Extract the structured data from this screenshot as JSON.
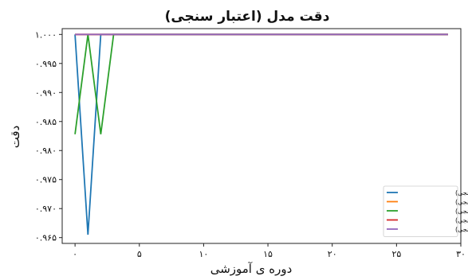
{
  "chart_data": {
    "type": "line",
    "title": "دقت مدل (اعتبار سنجی)",
    "xlabel": "دوره ی آموزشی",
    "ylabel": "دقت",
    "xlim": [
      -1,
      30
    ],
    "ylim": [
      0.964,
      1.001
    ],
    "x_ticks": [
      0,
      5,
      10,
      15,
      20,
      25,
      30
    ],
    "x_tick_labels": [
      "۰",
      "۵",
      "۱۰",
      "۱۵",
      "۲۰",
      "۲۵",
      "۳۰"
    ],
    "y_ticks": [
      0.965,
      0.97,
      0.975,
      0.98,
      0.985,
      0.99,
      0.995,
      1.0
    ],
    "y_tick_labels": [
      "۰.۹۶۵",
      "۰.۹۷۰",
      "۰.۹۷۵",
      "۰.۹۸۰",
      "۰.۹۸۵",
      "۰.۹۹۰",
      "۰.۹۹۵",
      "۱.۰۰۰"
    ],
    "grid": false,
    "legend_position": "bottom-right",
    "series": [
      {
        "name": "دقت_۱ (اعتبار سنجی)",
        "color": "#1f77b4",
        "x": [
          0,
          1,
          2,
          3,
          4,
          5,
          6,
          7,
          8,
          9,
          10,
          11,
          12,
          13,
          14,
          15,
          16,
          17,
          18,
          19,
          20,
          21,
          22,
          23,
          24,
          25,
          26,
          27,
          28,
          29
        ],
        "y": [
          1.0,
          0.9655,
          1.0,
          1.0,
          1.0,
          1.0,
          1.0,
          1.0,
          1.0,
          1.0,
          1.0,
          1.0,
          1.0,
          1.0,
          1.0,
          1.0,
          1.0,
          1.0,
          1.0,
          1.0,
          1.0,
          1.0,
          1.0,
          1.0,
          1.0,
          1.0,
          1.0,
          1.0,
          1.0,
          1.0
        ]
      },
      {
        "name": "دقت_۲ (اعتبار سنجی)",
        "color": "#ff7f0e",
        "x": [
          0,
          1,
          2,
          3,
          4,
          5,
          6,
          7,
          8,
          9,
          10,
          11,
          12,
          13,
          14,
          15,
          16,
          17,
          18,
          19,
          20,
          21,
          22,
          23,
          24,
          25,
          26,
          27,
          28,
          29
        ],
        "y": [
          1.0,
          1.0,
          1.0,
          1.0,
          1.0,
          1.0,
          1.0,
          1.0,
          1.0,
          1.0,
          1.0,
          1.0,
          1.0,
          1.0,
          1.0,
          1.0,
          1.0,
          1.0,
          1.0,
          1.0,
          1.0,
          1.0,
          1.0,
          1.0,
          1.0,
          1.0,
          1.0,
          1.0,
          1.0,
          1.0
        ]
      },
      {
        "name": "دقت_۳ (اعتبار سنجی)",
        "color": "#2ca02c",
        "x": [
          0,
          1,
          2,
          3,
          4,
          5,
          6,
          7,
          8,
          9,
          10,
          11,
          12,
          13,
          14,
          15,
          16,
          17,
          18,
          19,
          20,
          21,
          22,
          23,
          24,
          25,
          26,
          27,
          28,
          29
        ],
        "y": [
          0.9828,
          1.0,
          0.9828,
          1.0,
          1.0,
          1.0,
          1.0,
          1.0,
          1.0,
          1.0,
          1.0,
          1.0,
          1.0,
          1.0,
          1.0,
          1.0,
          1.0,
          1.0,
          1.0,
          1.0,
          1.0,
          1.0,
          1.0,
          1.0,
          1.0,
          1.0,
          1.0,
          1.0,
          1.0,
          1.0
        ]
      },
      {
        "name": "دقت_۴ (اعتبار سنجی)",
        "color": "#d62728",
        "x": [
          0,
          1,
          2,
          3,
          4,
          5,
          6,
          7,
          8,
          9,
          10,
          11,
          12,
          13,
          14,
          15,
          16,
          17,
          18,
          19,
          20,
          21,
          22,
          23,
          24,
          25,
          26,
          27,
          28,
          29
        ],
        "y": [
          1.0,
          1.0,
          1.0,
          1.0,
          1.0,
          1.0,
          1.0,
          1.0,
          1.0,
          1.0,
          1.0,
          1.0,
          1.0,
          1.0,
          1.0,
          1.0,
          1.0,
          1.0,
          1.0,
          1.0,
          1.0,
          1.0,
          1.0,
          1.0,
          1.0,
          1.0,
          1.0,
          1.0,
          1.0,
          1.0
        ]
      },
      {
        "name": "دقت_۵ (اعتبار سنجی)",
        "color": "#9467bd",
        "x": [
          0,
          1,
          2,
          3,
          4,
          5,
          6,
          7,
          8,
          9,
          10,
          11,
          12,
          13,
          14,
          15,
          16,
          17,
          18,
          19,
          20,
          21,
          22,
          23,
          24,
          25,
          26,
          27,
          28,
          29
        ],
        "y": [
          1.0,
          1.0,
          1.0,
          1.0,
          1.0,
          1.0,
          1.0,
          1.0,
          1.0,
          1.0,
          1.0,
          1.0,
          1.0,
          1.0,
          1.0,
          1.0,
          1.0,
          1.0,
          1.0,
          1.0,
          1.0,
          1.0,
          1.0,
          1.0,
          1.0,
          1.0,
          1.0,
          1.0,
          1.0,
          1.0
        ]
      }
    ]
  }
}
